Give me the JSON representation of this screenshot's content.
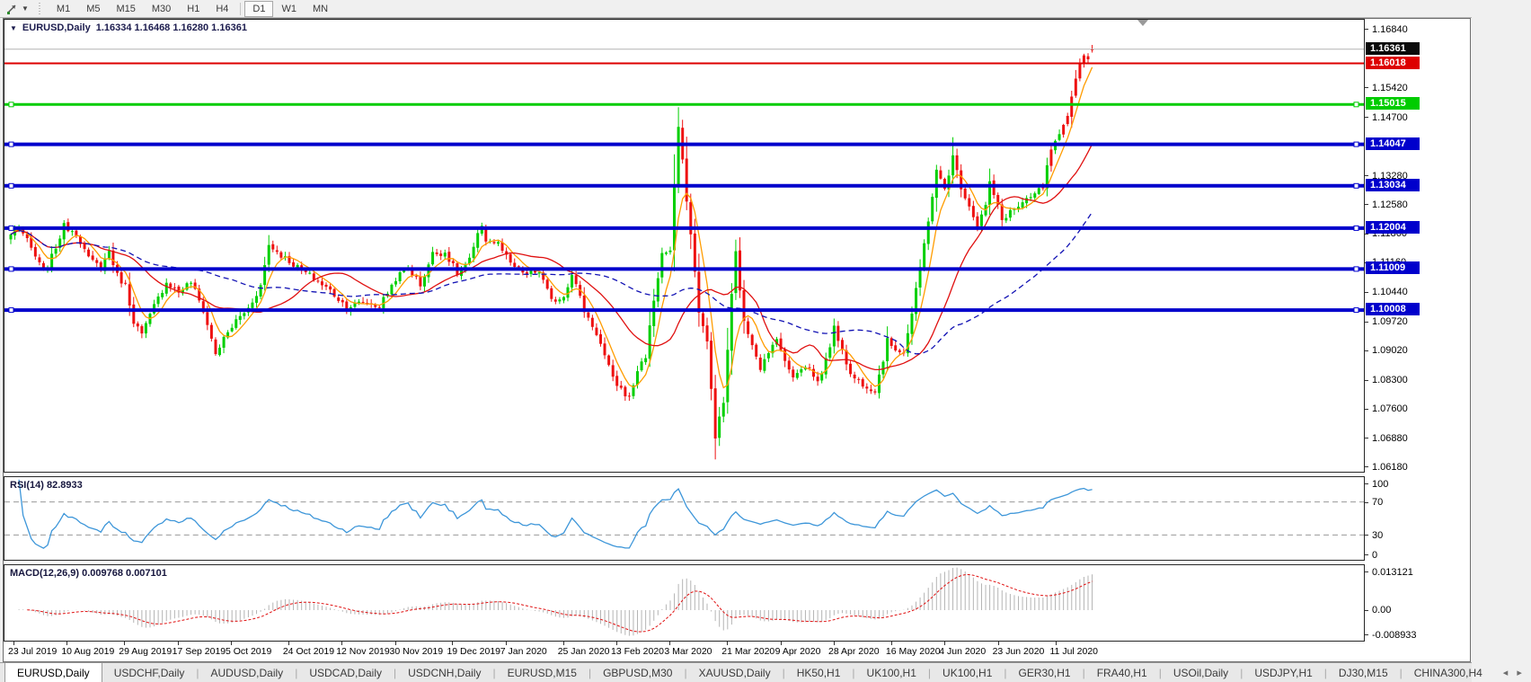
{
  "toolbar": {
    "groups": [
      [
        "M1",
        "M5",
        "M15",
        "M30",
        "H1",
        "H4"
      ],
      [
        "D1",
        "W1",
        "MN"
      ]
    ],
    "active_timeframe": "D1"
  },
  "chart": {
    "symbol_label": "EURUSD,Daily",
    "ohlc_text": "1.16334 1.16468 1.16280 1.16361"
  },
  "price_axis": {
    "ticks": [
      "1.16840",
      "1.15420",
      "1.14700",
      "1.13280",
      "1.12580",
      "1.11860",
      "1.11160",
      "1.10440",
      "1.09720",
      "1.09020",
      "1.08300",
      "1.07600",
      "1.06880",
      "1.06180"
    ],
    "boxed_labels": [
      {
        "text": "1.16361",
        "bg": "#0a0a0a",
        "price": 1.16361
      },
      {
        "text": "1.16018",
        "bg": "#dd0000",
        "price": 1.16018
      },
      {
        "text": "1.15015",
        "bg": "#00cc00",
        "price": 1.15015
      },
      {
        "text": "1.14047",
        "bg": "#0000cc",
        "price": 1.14047
      },
      {
        "text": "1.13034",
        "bg": "#0000cc",
        "price": 1.13034
      },
      {
        "text": "1.12004",
        "bg": "#0000cc",
        "price": 1.12004
      },
      {
        "text": "1.11009",
        "bg": "#0000cc",
        "price": 1.11009
      },
      {
        "text": "1.10008",
        "bg": "#0000cc",
        "price": 1.10008
      }
    ]
  },
  "rsi_panel": {
    "label": "RSI(14) 82.8933",
    "axis_top": "100",
    "axis_upper": "70",
    "axis_lower": "30",
    "axis_bottom": "0"
  },
  "macd_panel": {
    "label": "MACD(12,26,9) 0.009768 0.007101",
    "axis_top": "0.013121",
    "axis_zero": "0.00",
    "axis_bottom": "-0.008933"
  },
  "date_axis": [
    "23 Jul 2019",
    "10 Aug 2019",
    "29 Aug 2019",
    "17 Sep 2019",
    "5 Oct 2019",
    "24 Oct 2019",
    "12 Nov 2019",
    "30 Nov 2019",
    "19 Dec 2019",
    "7 Jan 2020",
    "25 Jan 2020",
    "13 Feb 2020",
    "3 Mar 2020",
    "21 Mar 2020",
    "9 Apr 2020",
    "28 Apr 2020",
    "16 May 2020",
    "4 Jun 2020",
    "23 Jun 2020",
    "11 Jul 2020"
  ],
  "tabs": {
    "items": [
      "EURUSD,Daily",
      "USDCHF,Daily",
      "AUDUSD,Daily",
      "USDCAD,Daily",
      "USDCNH,Daily",
      "EURUSD,M15",
      "GBPUSD,M30",
      "XAUUSD,Daily",
      "HK50,H1",
      "UK100,H1",
      "UK100,H1",
      "GER30,H1",
      "FRA40,H1",
      "USOil,Daily",
      "USDJPY,H1",
      "DJ30,M15",
      "CHINA300,H4"
    ],
    "active_index": 0,
    "scroll_left_icon": "◂",
    "scroll_right_icon": "▸"
  },
  "chart_data": {
    "type": "candlestick",
    "symbol": "EURUSD",
    "timeframe": "Daily",
    "ohlc_current": {
      "open": 1.16334,
      "high": 1.16468,
      "low": 1.1628,
      "close": 1.16361
    },
    "ylim": [
      1.0607,
      1.1708
    ],
    "n_candles": 265,
    "close_waypoints": [
      [
        0,
        1.1185
      ],
      [
        2,
        1.1205
      ],
      [
        5,
        1.115
      ],
      [
        8,
        1.1092
      ],
      [
        10,
        1.113
      ],
      [
        13,
        1.1205
      ],
      [
        16,
        1.119
      ],
      [
        19,
        1.1125
      ],
      [
        22,
        1.1105
      ],
      [
        24,
        1.1145
      ],
      [
        26,
        1.1085
      ],
      [
        28,
        1.106
      ],
      [
        30,
        1.0975
      ],
      [
        32,
        1.094
      ],
      [
        35,
        1.101
      ],
      [
        38,
        1.107
      ],
      [
        41,
        1.1045
      ],
      [
        44,
        1.107
      ],
      [
        47,
        1.1
      ],
      [
        50,
        1.0895
      ],
      [
        52,
        1.093
      ],
      [
        55,
        1.0975
      ],
      [
        58,
        1.1005
      ],
      [
        61,
        1.106
      ],
      [
        63,
        1.116
      ],
      [
        66,
        1.1135
      ],
      [
        70,
        1.1105
      ],
      [
        74,
        1.1078
      ],
      [
        78,
        1.1048
      ],
      [
        82,
        1.1008
      ],
      [
        86,
        1.102
      ],
      [
        90,
        1.101
      ],
      [
        94,
        1.1078
      ],
      [
        97,
        1.1105
      ],
      [
        100,
        1.1062
      ],
      [
        103,
        1.1138
      ],
      [
        106,
        1.1142
      ],
      [
        109,
        1.109
      ],
      [
        112,
        1.1122
      ],
      [
        115,
        1.121
      ],
      [
        116,
        1.1172
      ],
      [
        119,
        1.1162
      ],
      [
        122,
        1.1112
      ],
      [
        126,
        1.1088
      ],
      [
        129,
        1.1095
      ],
      [
        132,
        1.1022
      ],
      [
        135,
        1.1035
      ],
      [
        137,
        1.1092
      ],
      [
        140,
        1.1
      ],
      [
        143,
        1.0945
      ],
      [
        147,
        1.0832
      ],
      [
        151,
        1.0785
      ],
      [
        153,
        1.0855
      ],
      [
        155,
        1.089
      ],
      [
        157,
        1.1026
      ],
      [
        159,
        1.1138
      ],
      [
        161,
        1.1145
      ],
      [
        163,
        1.1448
      ],
      [
        164,
        1.136
      ],
      [
        166,
        1.1184
      ],
      [
        168,
        1.1
      ],
      [
        170,
        1.092
      ],
      [
        172,
        1.0695
      ],
      [
        174,
        1.0775
      ],
      [
        176,
        1.1035
      ],
      [
        177,
        1.114
      ],
      [
        179,
        1.0968
      ],
      [
        181,
        1.0922
      ],
      [
        183,
        1.0862
      ],
      [
        185,
        1.0892
      ],
      [
        187,
        1.0938
      ],
      [
        189,
        1.0872
      ],
      [
        191,
        1.0842
      ],
      [
        193,
        1.0862
      ],
      [
        195,
        1.0858
      ],
      [
        197,
        1.0825
      ],
      [
        199,
        1.0878
      ],
      [
        201,
        1.0955
      ],
      [
        203,
        1.0908
      ],
      [
        205,
        1.0842
      ],
      [
        208,
        1.0822
      ],
      [
        211,
        1.0806
      ],
      [
        213,
        1.0882
      ],
      [
        214,
        1.0925
      ],
      [
        216,
        1.0908
      ],
      [
        218,
        1.0898
      ],
      [
        220,
        1.0992
      ],
      [
        222,
        1.1102
      ],
      [
        224,
        1.1222
      ],
      [
        226,
        1.1338
      ],
      [
        228,
        1.1296
      ],
      [
        230,
        1.1374
      ],
      [
        232,
        1.1302
      ],
      [
        234,
        1.1256
      ],
      [
        236,
        1.1207
      ],
      [
        238,
        1.1256
      ],
      [
        239,
        1.1309
      ],
      [
        241,
        1.1252
      ],
      [
        242,
        1.122
      ],
      [
        244,
        1.1242
      ],
      [
        246,
        1.1252
      ],
      [
        248,
        1.1266
      ],
      [
        250,
        1.1282
      ],
      [
        252,
        1.1302
      ],
      [
        254,
        1.1392
      ],
      [
        256,
        1.1422
      ],
      [
        258,
        1.1468
      ],
      [
        260,
        1.1572
      ],
      [
        261,
        1.1598
      ],
      [
        262,
        1.1628
      ],
      [
        263,
        1.161
      ],
      [
        264,
        1.1636
      ]
    ],
    "key_candles": {
      "163": {
        "high": 1.1495
      },
      "172": {
        "low": 1.0637
      },
      "230": {
        "high": 1.1422
      },
      "264": {
        "open": 1.16334,
        "high": 1.16468,
        "low": 1.1628,
        "close": 1.16361
      }
    },
    "forced_red_indices": [
      254,
      257,
      258,
      259,
      260,
      261,
      262,
      263,
      264
    ],
    "candle_up_color": "#00cf00",
    "candle_down_color": "#ee1111",
    "horizontal_lines": [
      {
        "price": 1.16018,
        "color": "#dd0000",
        "width": 2,
        "handles": false
      },
      {
        "price": 1.15015,
        "color": "#00cc00",
        "width": 3,
        "handles": true
      },
      {
        "price": 1.14047,
        "color": "#0000cc",
        "width": 4,
        "handles": true
      },
      {
        "price": 1.13034,
        "color": "#0000cc",
        "width": 4,
        "handles": true
      },
      {
        "price": 1.12004,
        "color": "#0000cc",
        "width": 4,
        "handles": true
      },
      {
        "price": 1.11009,
        "color": "#0000cc",
        "width": 4,
        "handles": true
      },
      {
        "price": 1.10008,
        "color": "#0000cc",
        "width": 4,
        "handles": true
      }
    ],
    "current_price_line": {
      "price": 1.16361,
      "color": "#b4b4b4"
    },
    "moving_averages": [
      {
        "period": 8,
        "type": "lwma",
        "color": "#ff9c00",
        "dash": ""
      },
      {
        "period": 21,
        "type": "sma",
        "color": "#e01010",
        "dash": ""
      },
      {
        "period": 55,
        "type": "sma",
        "color": "#1212b4",
        "dash": "6 4"
      }
    ],
    "rsi": {
      "period": 14,
      "current": 82.8933,
      "levels": [
        70,
        30
      ],
      "range": [
        0,
        100
      ],
      "color": "#3d96d9"
    },
    "macd": {
      "fast": 12,
      "slow": 26,
      "signal": 9,
      "current": 0.009768,
      "signal_current": 0.007101,
      "ymax": 0.013121,
      "ymin": -0.008933,
      "hist_color": "#b4b4b4",
      "signal_color": "#e01010"
    },
    "x_tick_candle_indices": [
      0,
      13,
      27,
      40,
      53,
      67,
      80,
      93,
      107,
      120,
      134,
      147,
      160,
      174,
      187,
      200,
      214,
      227,
      240,
      254
    ],
    "shift_marker_fraction": 0.836
  }
}
